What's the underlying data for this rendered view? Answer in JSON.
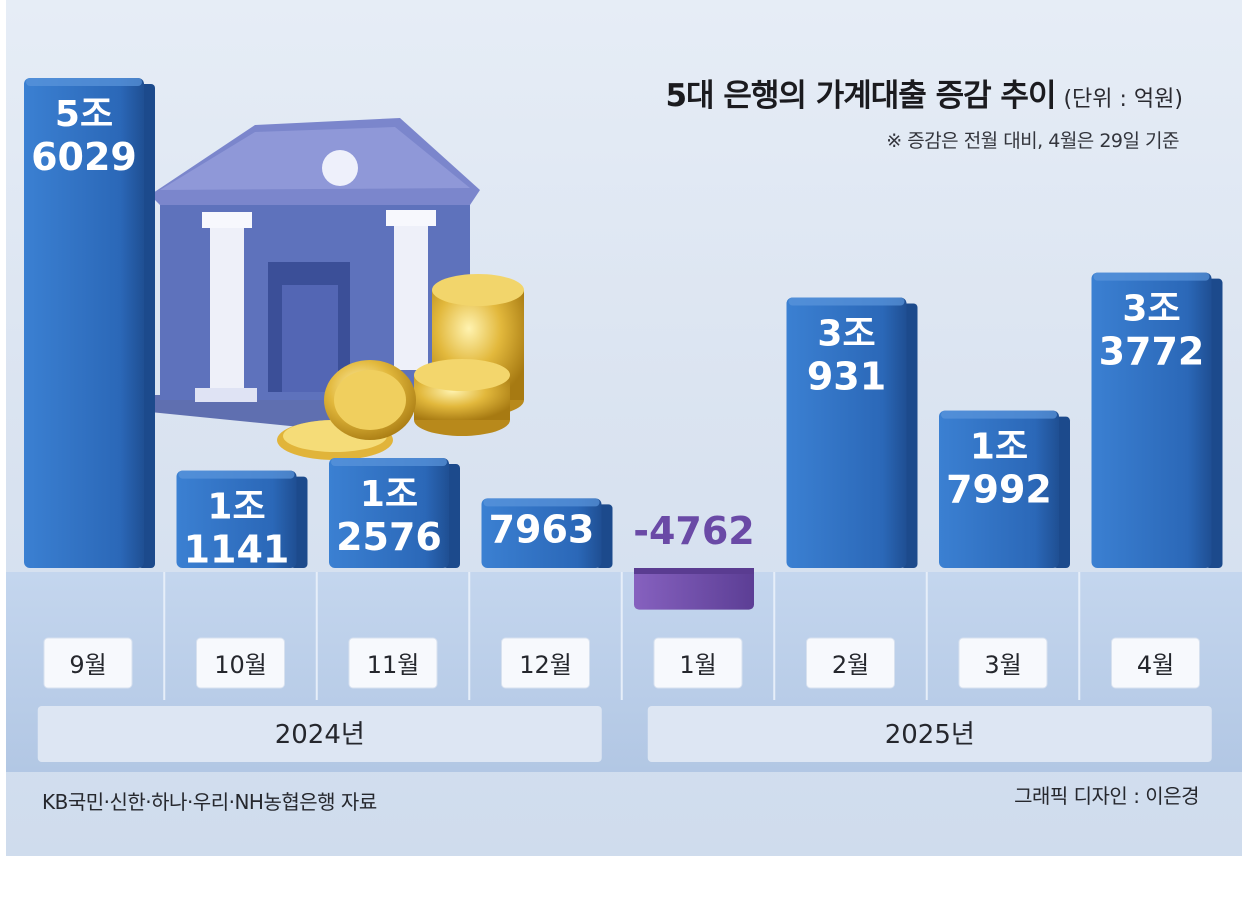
{
  "header": {
    "title": "5대 은행의 가계대출 증감 추이",
    "unit": "(단위 : 억원)",
    "note": "※ 증감은 전월 대비, 4월은 29일 기준"
  },
  "footer": {
    "source": "KB국민·신한·하나·우리·NH농협은행 자료",
    "credit": "그래픽 디자인 : 이은경"
  },
  "colors": {
    "positive_bar": "#2f72c4",
    "negative_bar": "#7a55b3",
    "negative_label": "#6a4aa6",
    "label_text": "#ffffff",
    "floor": "#bcd0ea"
  },
  "chart_data": {
    "type": "bar",
    "title": "5대 은행의 가계대출 증감 추이",
    "unit": "억원",
    "categories": [
      "9월",
      "10월",
      "11월",
      "12월",
      "1월",
      "2월",
      "3월",
      "4월"
    ],
    "values": [
      56029,
      11141,
      12576,
      7963,
      -4762,
      30931,
      17992,
      33772
    ],
    "value_labels": [
      [
        "5조",
        "6029"
      ],
      [
        "1조",
        "1141"
      ],
      [
        "1조",
        "2576"
      ],
      [
        "",
        "7963"
      ],
      [
        "",
        "-4762"
      ],
      [
        "3조",
        "931"
      ],
      [
        "1조",
        "7992"
      ],
      [
        "3조",
        "3772"
      ]
    ],
    "year_groups": [
      {
        "label": "2024년",
        "categories": [
          "9월",
          "10월",
          "11월",
          "12월"
        ]
      },
      {
        "label": "2025년",
        "categories": [
          "1월",
          "2월",
          "3월",
          "4월"
        ]
      }
    ],
    "grid": false,
    "legend": "none"
  }
}
